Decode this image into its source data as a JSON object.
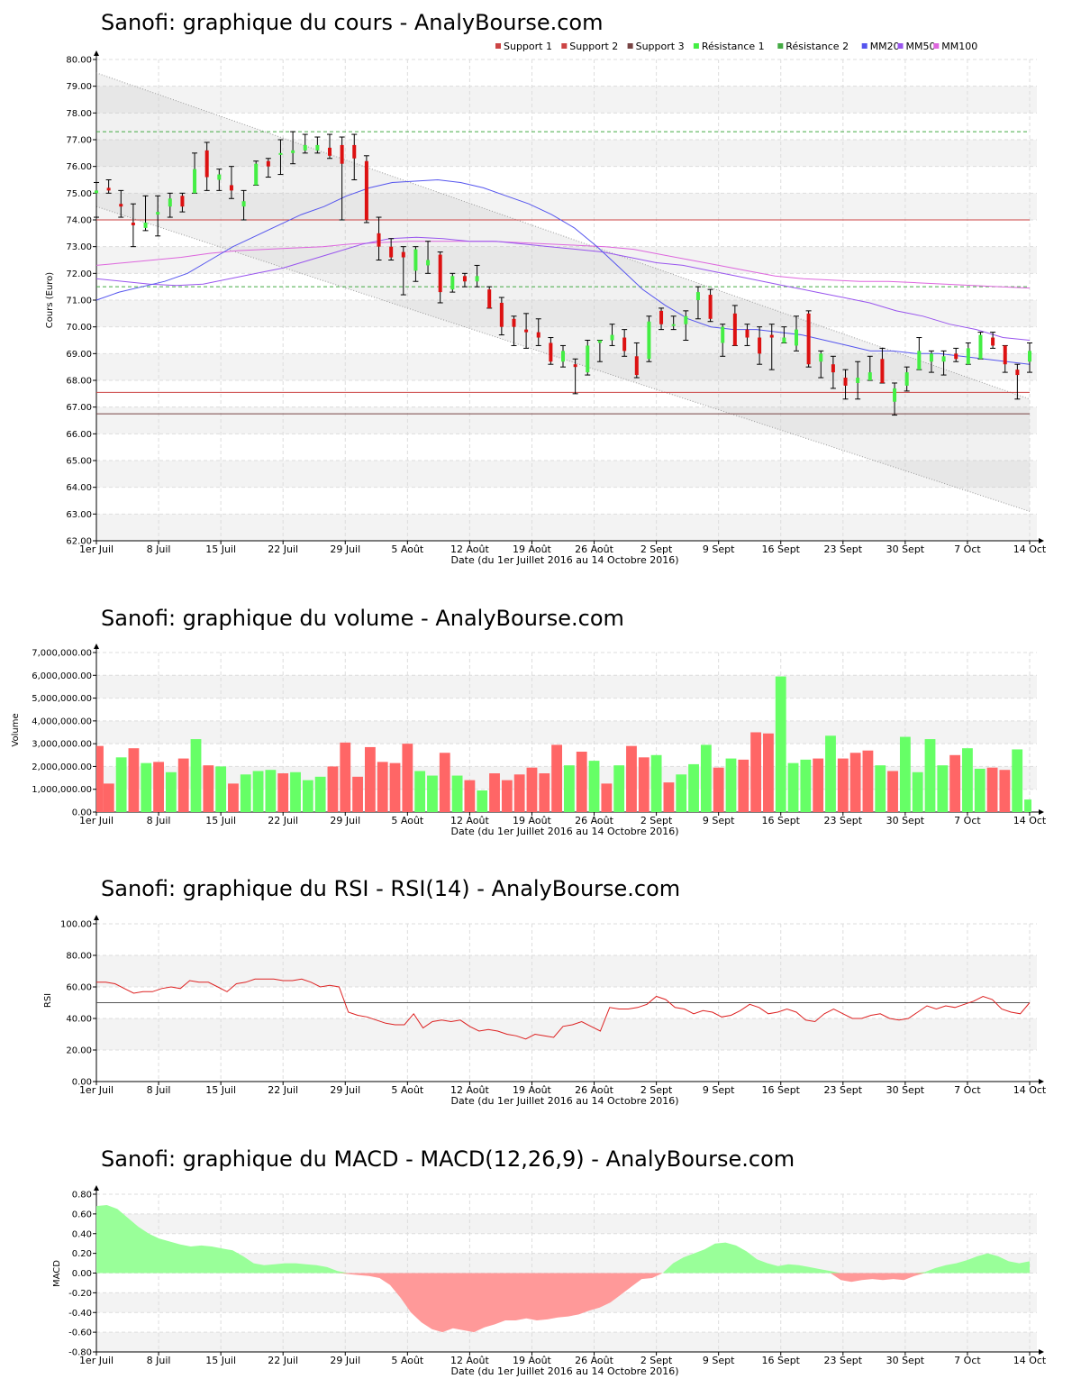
{
  "dates": [
    "1er Juil",
    "8 Juil",
    "15 Juil",
    "22 Juil",
    "29 Juil",
    "5 Août",
    "12 Août",
    "19 Août",
    "26 Août",
    "2 Sept",
    "9 Sept",
    "16 Sept",
    "23 Sept",
    "30 Sept",
    "7 Oct",
    "14 Oct"
  ],
  "xlabel": "Date (du 1er Juillet 2016 au 14 Octobre 2016)",
  "colors": {
    "up": "#44ee44",
    "down": "#dd1111",
    "vol_up": "#66ff66",
    "vol_down": "#ff6666",
    "mm20": "#5555ee",
    "mm50": "#9955ee",
    "mm100": "#dd66dd",
    "support": "#cc4444",
    "support3": "#774444",
    "resistance": "#44aa44",
    "rsi": "#dd2222",
    "macd_pos": "#99ff99",
    "macd_neg": "#ff9999"
  },
  "chart_data": [
    {
      "type": "candlestick",
      "title": "Sanofi: graphique du cours - AnalyBourse.com",
      "ylabel": "Cours (Euro)",
      "ylim": [
        62,
        80
      ],
      "yticks": [
        "80.00",
        "79.00",
        "78.00",
        "77.00",
        "76.00",
        "75.00",
        "74.00",
        "73.00",
        "72.00",
        "71.00",
        "70.00",
        "69.00",
        "68.00",
        "67.00",
        "66.00",
        "65.00",
        "64.00",
        "63.00",
        "62.00"
      ],
      "legend": [
        "Support 1",
        "Support 2",
        "Support 3",
        "Résistance 1",
        "Résistance 2",
        "MM20",
        "MM50",
        "MM100"
      ],
      "support_levels": [
        74.0,
        67.55,
        66.75
      ],
      "resistance_levels": [
        77.3,
        71.5
      ],
      "channel": {
        "upper": [
          79.5,
          67.3
        ],
        "lower": [
          74.5,
          63.1
        ]
      },
      "ohlc": [
        [
          75.0,
          75.4,
          74.1,
          75.1
        ],
        [
          75.2,
          75.5,
          75.0,
          75.1
        ],
        [
          74.6,
          75.1,
          74.1,
          74.5
        ],
        [
          73.9,
          74.6,
          73.0,
          73.8
        ],
        [
          73.7,
          74.9,
          73.6,
          73.9
        ],
        [
          74.2,
          74.9,
          73.4,
          74.3
        ],
        [
          74.5,
          75.0,
          74.1,
          74.8
        ],
        [
          74.9,
          75.0,
          74.3,
          74.5
        ],
        [
          75.0,
          76.5,
          75.0,
          75.9
        ],
        [
          76.6,
          76.9,
          75.1,
          75.6
        ],
        [
          75.5,
          75.9,
          75.1,
          75.7
        ],
        [
          75.3,
          76.0,
          74.8,
          75.1
        ],
        [
          74.5,
          75.1,
          74.0,
          74.7
        ],
        [
          75.3,
          76.2,
          75.3,
          76.1
        ],
        [
          76.2,
          76.3,
          75.6,
          76.0
        ],
        [
          76.5,
          77.0,
          75.7,
          76.5
        ],
        [
          76.5,
          77.3,
          76.1,
          76.6
        ],
        [
          76.6,
          77.2,
          76.5,
          76.8
        ],
        [
          76.6,
          77.1,
          76.5,
          76.8
        ],
        [
          76.7,
          77.2,
          76.3,
          76.4
        ],
        [
          76.8,
          77.1,
          74.0,
          76.1
        ],
        [
          76.8,
          77.2,
          75.5,
          76.3
        ],
        [
          76.2,
          76.4,
          73.9,
          74.0
        ],
        [
          73.5,
          74.1,
          72.5,
          73.0
        ],
        [
          73.0,
          73.3,
          72.5,
          72.6
        ],
        [
          72.8,
          73.0,
          71.2,
          72.6
        ],
        [
          72.1,
          73.0,
          71.7,
          72.9
        ],
        [
          72.3,
          73.2,
          72.0,
          72.5
        ],
        [
          72.7,
          72.8,
          70.9,
          71.3
        ],
        [
          71.4,
          72.0,
          71.3,
          71.9
        ],
        [
          71.9,
          72.0,
          71.5,
          71.7
        ],
        [
          71.7,
          72.3,
          71.5,
          71.9
        ],
        [
          71.4,
          71.5,
          70.7,
          70.7
        ],
        [
          70.9,
          71.1,
          69.7,
          70.0
        ],
        [
          70.3,
          70.4,
          69.3,
          70.0
        ],
        [
          69.9,
          70.5,
          69.2,
          69.8
        ],
        [
          69.8,
          70.3,
          69.3,
          69.6
        ],
        [
          69.4,
          69.6,
          68.6,
          68.7
        ],
        [
          68.7,
          69.3,
          68.5,
          69.1
        ],
        [
          68.6,
          68.8,
          67.5,
          68.5
        ],
        [
          68.3,
          69.5,
          68.2,
          69.3
        ],
        [
          69.4,
          69.5,
          68.7,
          69.5
        ],
        [
          69.5,
          70.1,
          69.3,
          69.7
        ],
        [
          69.6,
          69.9,
          68.9,
          69.1
        ],
        [
          68.9,
          69.4,
          68.1,
          68.2
        ],
        [
          68.8,
          70.4,
          68.7,
          70.2
        ],
        [
          70.6,
          70.7,
          69.9,
          70.1
        ],
        [
          70.1,
          70.4,
          69.9,
          70.1
        ],
        [
          70.1,
          70.6,
          69.5,
          70.4
        ],
        [
          71.0,
          71.5,
          70.3,
          71.3
        ],
        [
          71.2,
          71.4,
          70.2,
          70.3
        ],
        [
          69.4,
          70.1,
          68.9,
          70.0
        ],
        [
          70.5,
          70.8,
          69.3,
          69.3
        ],
        [
          69.9,
          70.1,
          69.3,
          69.6
        ],
        [
          69.6,
          70.0,
          68.6,
          69.0
        ],
        [
          69.7,
          70.1,
          68.4,
          69.6
        ],
        [
          69.4,
          70.0,
          69.4,
          69.6
        ],
        [
          69.3,
          70.4,
          69.1,
          69.9
        ],
        [
          70.5,
          70.6,
          68.5,
          68.6
        ],
        [
          68.7,
          69.1,
          68.1,
          69.0
        ],
        [
          68.6,
          68.9,
          67.7,
          68.3
        ],
        [
          68.1,
          68.4,
          67.3,
          67.8
        ],
        [
          67.9,
          68.7,
          67.3,
          68.1
        ],
        [
          68.0,
          68.9,
          68.0,
          68.3
        ],
        [
          68.8,
          69.2,
          67.9,
          67.9
        ],
        [
          67.2,
          67.9,
          66.7,
          67.7
        ],
        [
          67.8,
          68.5,
          67.6,
          68.3
        ],
        [
          68.4,
          69.6,
          68.4,
          69.1
        ],
        [
          68.7,
          69.1,
          68.3,
          69.0
        ],
        [
          68.7,
          69.1,
          68.2,
          68.9
        ],
        [
          69.0,
          69.2,
          68.7,
          68.8
        ],
        [
          68.6,
          69.4,
          68.6,
          69.2
        ],
        [
          68.8,
          69.8,
          68.8,
          69.7
        ],
        [
          69.6,
          69.8,
          69.2,
          69.3
        ],
        [
          69.3,
          69.3,
          68.3,
          68.6
        ],
        [
          68.4,
          68.6,
          67.3,
          68.2
        ],
        [
          68.7,
          69.4,
          68.3,
          69.1
        ]
      ],
      "mm20": [
        71.0,
        71.3,
        71.5,
        71.7,
        72.0,
        72.5,
        73.0,
        73.4,
        73.8,
        74.2,
        74.5,
        74.9,
        75.2,
        75.4,
        75.45,
        75.5,
        75.4,
        75.2,
        74.9,
        74.6,
        74.2,
        73.7,
        73.0,
        72.2,
        71.4,
        70.8,
        70.3,
        70.0,
        69.9,
        69.9,
        69.8,
        69.7,
        69.5,
        69.3,
        69.1,
        69.1,
        69.0,
        69.0,
        68.9,
        68.8,
        68.7,
        68.6
      ],
      "mm50": [
        71.8,
        71.7,
        71.6,
        71.55,
        71.6,
        71.8,
        72.0,
        72.2,
        72.5,
        72.8,
        73.1,
        73.3,
        73.35,
        73.3,
        73.2,
        73.2,
        73.1,
        73.0,
        72.9,
        72.8,
        72.6,
        72.4,
        72.3,
        72.1,
        71.9,
        71.7,
        71.5,
        71.3,
        71.1,
        70.9,
        70.6,
        70.4,
        70.1,
        69.9,
        69.6,
        69.5
      ],
      "mm100": [
        72.3,
        72.4,
        72.5,
        72.6,
        72.75,
        72.85,
        72.9,
        72.95,
        73.0,
        73.1,
        73.15,
        73.2,
        73.2,
        73.2,
        73.2,
        73.15,
        73.1,
        73.05,
        73.0,
        72.9,
        72.7,
        72.5,
        72.3,
        72.1,
        71.9,
        71.8,
        71.75,
        71.7,
        71.7,
        71.65,
        71.6,
        71.55,
        71.5,
        71.45
      ]
    },
    {
      "type": "bar",
      "title": "Sanofi: graphique du volume - AnalyBourse.com",
      "ylabel": "Volume",
      "ylim": [
        0,
        7000000
      ],
      "yticks": [
        "7,000,000.00",
        "6,000,000.00",
        "5,000,000.00",
        "4,000,000.00",
        "3,000,000.00",
        "2,000,000.00",
        "1,000,000.00",
        "0.00"
      ],
      "values": [
        2900000,
        1250000,
        2400000,
        2800000,
        2150000,
        2200000,
        1750000,
        2350000,
        3200000,
        2050000,
        2000000,
        1250000,
        1650000,
        1800000,
        1850000,
        1700000,
        1750000,
        1400000,
        1550000,
        2000000,
        3050000,
        1550000,
        2850000,
        2200000,
        2150000,
        3000000,
        1800000,
        1600000,
        2600000,
        1600000,
        1400000,
        950000,
        1700000,
        1400000,
        1650000,
        1950000,
        1700000,
        2950000,
        2050000,
        2650000,
        2250000,
        1250000,
        2050000,
        2900000,
        2400000,
        2500000,
        1300000,
        1650000,
        2100000,
        2950000,
        1950000,
        2350000,
        2300000,
        3500000,
        3450000,
        5950000,
        2150000,
        2300000,
        2350000,
        3350000,
        2350000,
        2600000,
        2700000,
        2050000,
        1800000,
        3300000,
        1750000,
        3200000,
        2050000,
        2500000,
        2800000,
        1900000,
        1950000,
        1850000,
        2750000,
        550000
      ],
      "up": [
        0,
        0,
        1,
        0,
        1,
        0,
        1,
        0,
        1,
        0,
        1,
        0,
        1,
        1,
        1,
        0,
        1,
        1,
        1,
        0,
        0,
        0,
        0,
        0,
        0,
        0,
        1,
        1,
        0,
        1,
        0,
        1,
        0,
        0,
        0,
        0,
        0,
        0,
        1,
        0,
        1,
        0,
        1,
        0,
        0,
        1,
        0,
        1,
        1,
        1,
        0,
        1,
        0,
        0,
        0,
        1,
        1,
        1,
        0,
        1,
        0,
        0,
        0,
        1,
        0,
        1,
        1,
        1,
        1,
        0,
        1,
        1,
        0,
        0,
        1,
        1
      ]
    },
    {
      "type": "line",
      "title": "Sanofi: graphique du RSI - RSI(14) - AnalyBourse.com",
      "ylabel": "RSI",
      "ylim": [
        0,
        100
      ],
      "yticks": [
        "100.00",
        "80.00",
        "60.00",
        "40.00",
        "20.00",
        "0.00"
      ],
      "reference": 50,
      "values": [
        63,
        63,
        62,
        59,
        56,
        57,
        57,
        59,
        60,
        59,
        64,
        63,
        63,
        60,
        57,
        62,
        63,
        65,
        65,
        65,
        64,
        64,
        65,
        63,
        60,
        61,
        60,
        44,
        42,
        41,
        39,
        37,
        36,
        36,
        43,
        34,
        38,
        39,
        38,
        39,
        35,
        32,
        33,
        32,
        30,
        29,
        27,
        30,
        29,
        28,
        35,
        36,
        38,
        35,
        32,
        47,
        46,
        46,
        47,
        49,
        54,
        52,
        47,
        46,
        43,
        45,
        44,
        41,
        42,
        45,
        49,
        47,
        43,
        44,
        46,
        44,
        39,
        38,
        43,
        46,
        43,
        40,
        40,
        42,
        43,
        40,
        39,
        40,
        44,
        48,
        46,
        48,
        47,
        49,
        51,
        54,
        52,
        46,
        44,
        43,
        50
      ]
    },
    {
      "type": "area",
      "title": "Sanofi: graphique du MACD - MACD(12,26,9) - AnalyBourse.com",
      "ylabel": "MACD",
      "ylim": [
        -0.8,
        0.8
      ],
      "yticks": [
        "0.80",
        "0.60",
        "0.40",
        "0.20",
        "0.00",
        "-0.20",
        "-0.40",
        "-0.60",
        "-0.80"
      ],
      "values": [
        0.68,
        0.69,
        0.65,
        0.56,
        0.47,
        0.4,
        0.35,
        0.32,
        0.29,
        0.27,
        0.28,
        0.27,
        0.25,
        0.23,
        0.17,
        0.1,
        0.08,
        0.09,
        0.1,
        0.1,
        0.09,
        0.08,
        0.06,
        0.02,
        -0.01,
        -0.02,
        -0.03,
        -0.05,
        -0.12,
        -0.25,
        -0.4,
        -0.5,
        -0.57,
        -0.6,
        -0.56,
        -0.58,
        -0.6,
        -0.55,
        -0.52,
        -0.48,
        -0.48,
        -0.46,
        -0.48,
        -0.47,
        -0.45,
        -0.44,
        -0.42,
        -0.38,
        -0.35,
        -0.3,
        -0.22,
        -0.14,
        -0.06,
        -0.05,
        0.0,
        0.1,
        0.16,
        0.2,
        0.24,
        0.3,
        0.31,
        0.28,
        0.22,
        0.14,
        0.1,
        0.07,
        0.09,
        0.08,
        0.06,
        0.04,
        0.02,
        -0.07,
        -0.09,
        -0.07,
        -0.06,
        -0.07,
        -0.06,
        -0.07,
        -0.03,
        0.01,
        0.05,
        0.08,
        0.1,
        0.13,
        0.17,
        0.2,
        0.17,
        0.12,
        0.1,
        0.12
      ]
    }
  ]
}
